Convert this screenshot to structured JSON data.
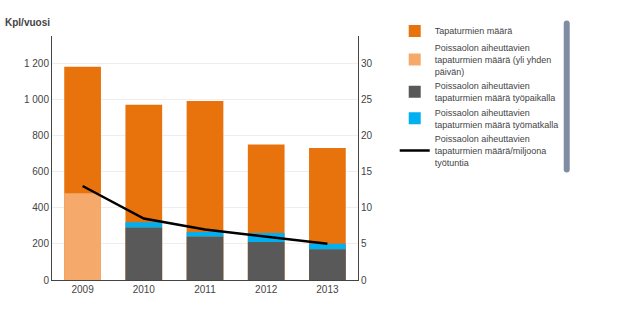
{
  "chart_data": {
    "type": "bar",
    "ylabel": "Kpl/vuosi",
    "categories": [
      "2009",
      "2010",
      "2011",
      "2012",
      "2013"
    ],
    "series": [
      {
        "name": "Tapaturmien määrä",
        "type": "bar",
        "color": "#E8720C",
        "values": [
          1180,
          970,
          990,
          750,
          730
        ]
      },
      {
        "name": "Poissaolon aiheuttavien\ntapaturmien määrä (yli yhden\npäivän)",
        "type": "bar",
        "color": "#F5A96B",
        "values": [
          480,
          0,
          0,
          0,
          0
        ]
      },
      {
        "name": "Poissaolon aiheuttavien\ntapaturmien määrä työpaikalla",
        "type": "bar",
        "color": "#595959",
        "values": [
          0,
          290,
          240,
          210,
          170
        ]
      },
      {
        "name": "Poissaolon aiheuttavien\ntapaturmien määrä työmatkalla",
        "type": "bar",
        "color": "#00B0F0",
        "stacked": true,
        "values": [
          0,
          30,
          25,
          50,
          30
        ]
      },
      {
        "name": "Poissaolon aiheuttavien\ntapaturmien määrä/miljoona\ntyötuntia",
        "type": "line",
        "color": "#000000",
        "axis": "y2",
        "values": [
          13.0,
          8.5,
          7.0,
          6.0,
          5.0
        ]
      }
    ],
    "ylim": [
      0,
      1350
    ],
    "yticks": [
      0,
      200,
      400,
      600,
      800,
      {
        "value": 1000,
        "label": "1 000"
      },
      {
        "value": 1200,
        "label": "1 200"
      }
    ],
    "y2lim": [
      0,
      33.75
    ],
    "y2ticks": [
      0,
      5,
      10,
      15,
      20,
      25,
      30
    ],
    "grid": true
  }
}
